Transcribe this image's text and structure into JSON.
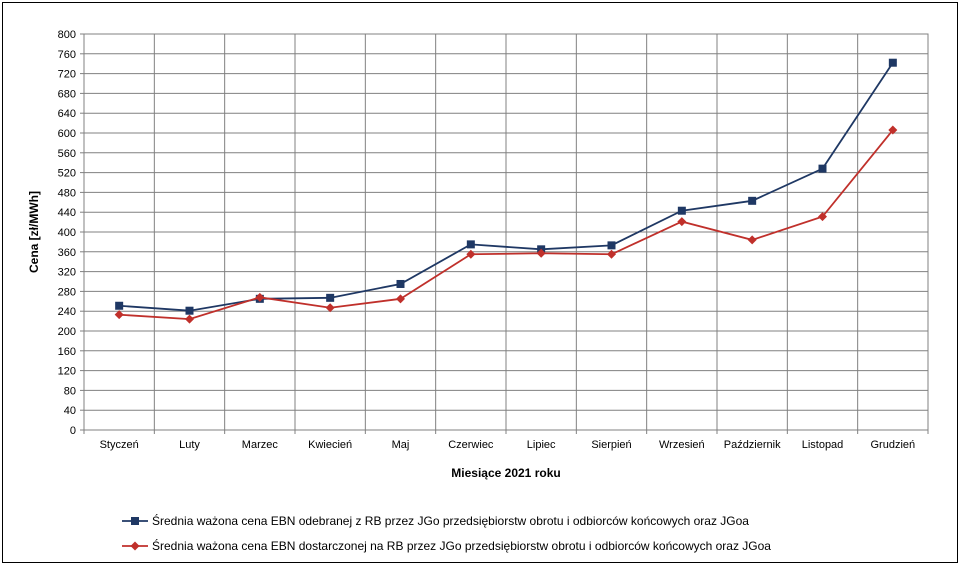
{
  "chart_data": {
    "type": "line",
    "categories": [
      "Styczeń",
      "Luty",
      "Marzec",
      "Kwiecień",
      "Maj",
      "Czerwiec",
      "Lipiec",
      "Sierpień",
      "Wrzesień",
      "Październik",
      "Listopad",
      "Grudzień"
    ],
    "series": [
      {
        "name": "Średnia ważona cena EBN odebranej z RB przez JGo przedsiębiorstw obrotu i odbiorców końcowych oraz JGoa",
        "color": "#1f3864",
        "marker": "square",
        "values": [
          251,
          241,
          265,
          267,
          295,
          375,
          365,
          373,
          443,
          463,
          528,
          742
        ]
      },
      {
        "name": "Średnia ważona cena EBN dostarczonej na RB przez JGo przedsiębiorstw obrotu i odbiorców końcowych oraz JGoa",
        "color": "#c0302b",
        "marker": "diamond",
        "values": [
          233,
          224,
          268,
          247,
          265,
          355,
          357,
          355,
          421,
          384,
          431,
          606
        ]
      }
    ],
    "xlabel": "Miesiące 2021  roku",
    "ylabel": "Cena [zł/MWh]",
    "ylim": [
      0,
      800
    ],
    "yticks": [
      0,
      40,
      80,
      120,
      160,
      200,
      240,
      280,
      320,
      360,
      400,
      440,
      480,
      520,
      560,
      600,
      640,
      680,
      720,
      760,
      800
    ],
    "grid": true,
    "legend_position": "bottom"
  }
}
